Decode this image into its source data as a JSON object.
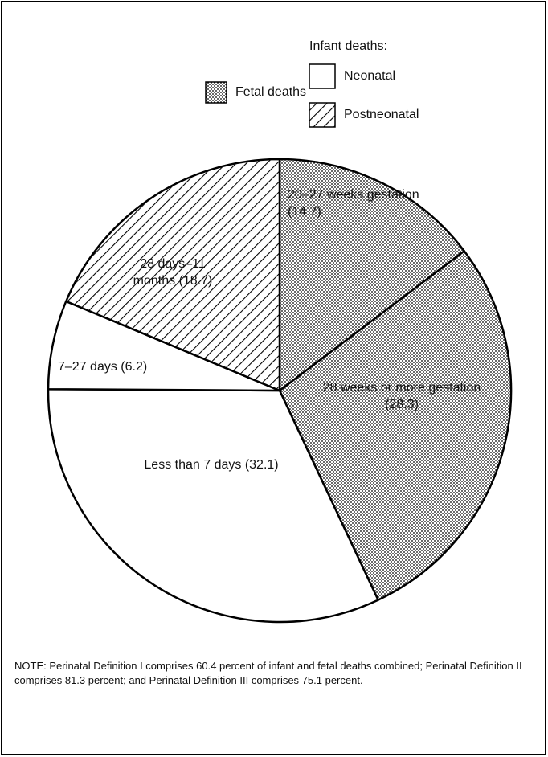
{
  "chart_data": {
    "type": "pie",
    "categories": [
      "20–27 weeks gestation",
      "28 weeks or more gestation",
      "Less than 7 days",
      "7–27 days",
      "28 days–11 months"
    ],
    "values": [
      14.7,
      28.3,
      32.1,
      6.2,
      18.7
    ],
    "value_labels": [
      "(14.7)",
      "(28.3)",
      "(32.1)",
      "(6.2)",
      "(18.7)"
    ],
    "patterns": [
      "dots",
      "dots",
      "none",
      "none",
      "hatch"
    ],
    "legend": {
      "title": "Infant deaths:",
      "entries": [
        {
          "name": "Fetal deaths",
          "pattern": "dots"
        },
        {
          "name": "Neonatal",
          "pattern": "none"
        },
        {
          "name": "Postneonatal",
          "pattern": "hatch"
        }
      ]
    },
    "note": "NOTE: Perinatal Definition I comprises 60.4 percent of infant and fetal deaths combined; Perinatal Definition II comprises 81.3 percent; and Perinatal Definition III comprises 75.1 percent."
  }
}
